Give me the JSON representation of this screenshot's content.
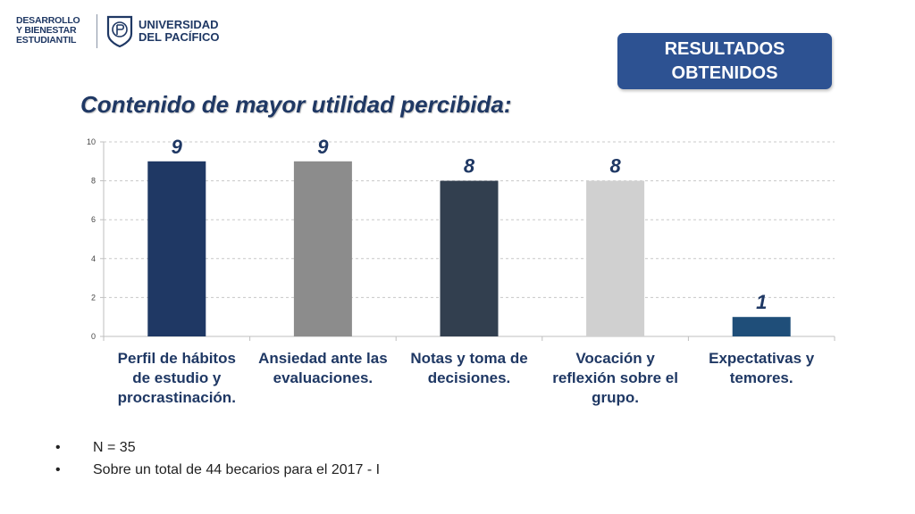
{
  "header": {
    "unit_logo_lines": [
      "DESARROLLO",
      "Y BIENESTAR",
      "ESTUDIANTIL"
    ],
    "university_lines": [
      "UNIVERSIDAD",
      "DEL PACÍFICO"
    ]
  },
  "badge": {
    "lines": [
      "RESULTADOS",
      "OBTENIDOS"
    ]
  },
  "title": "Contenido de mayor utilidad percibida:",
  "chart_data": {
    "type": "bar",
    "categories": [
      "Perfil de hábitos de estudio y procrastinación.",
      "Ansiedad ante las evaluaciones.",
      "Notas y toma de decisiones.",
      "Vocación y reflexión sobre el grupo.",
      "Expectativas y temores."
    ],
    "category_lines": [
      [
        "Perfil de hábitos",
        "de estudio y",
        "procrastinación."
      ],
      [
        "Ansiedad ante las",
        "evaluaciones."
      ],
      [
        "Notas y toma de",
        "decisiones."
      ],
      [
        "Vocación y",
        "reflexión sobre el",
        "grupo."
      ],
      [
        "Expectativas y",
        "temores."
      ]
    ],
    "values": [
      9,
      9,
      8,
      8,
      1
    ],
    "data_labels": [
      "9",
      "9",
      "8",
      "8",
      "1"
    ],
    "bar_colors": [
      "#1f3864",
      "#8c8c8c",
      "#323f4f",
      "#d0d0d0",
      "#1f4e79"
    ],
    "ylim": [
      0,
      10
    ],
    "yticks": [
      "0",
      "2",
      "4",
      "6",
      "8",
      "10"
    ],
    "grid": true,
    "grid_style": "dashed",
    "legend": "none"
  },
  "notes": [
    "N = 35",
    "Sobre un total de 44 becarios para el 2017 - I"
  ]
}
